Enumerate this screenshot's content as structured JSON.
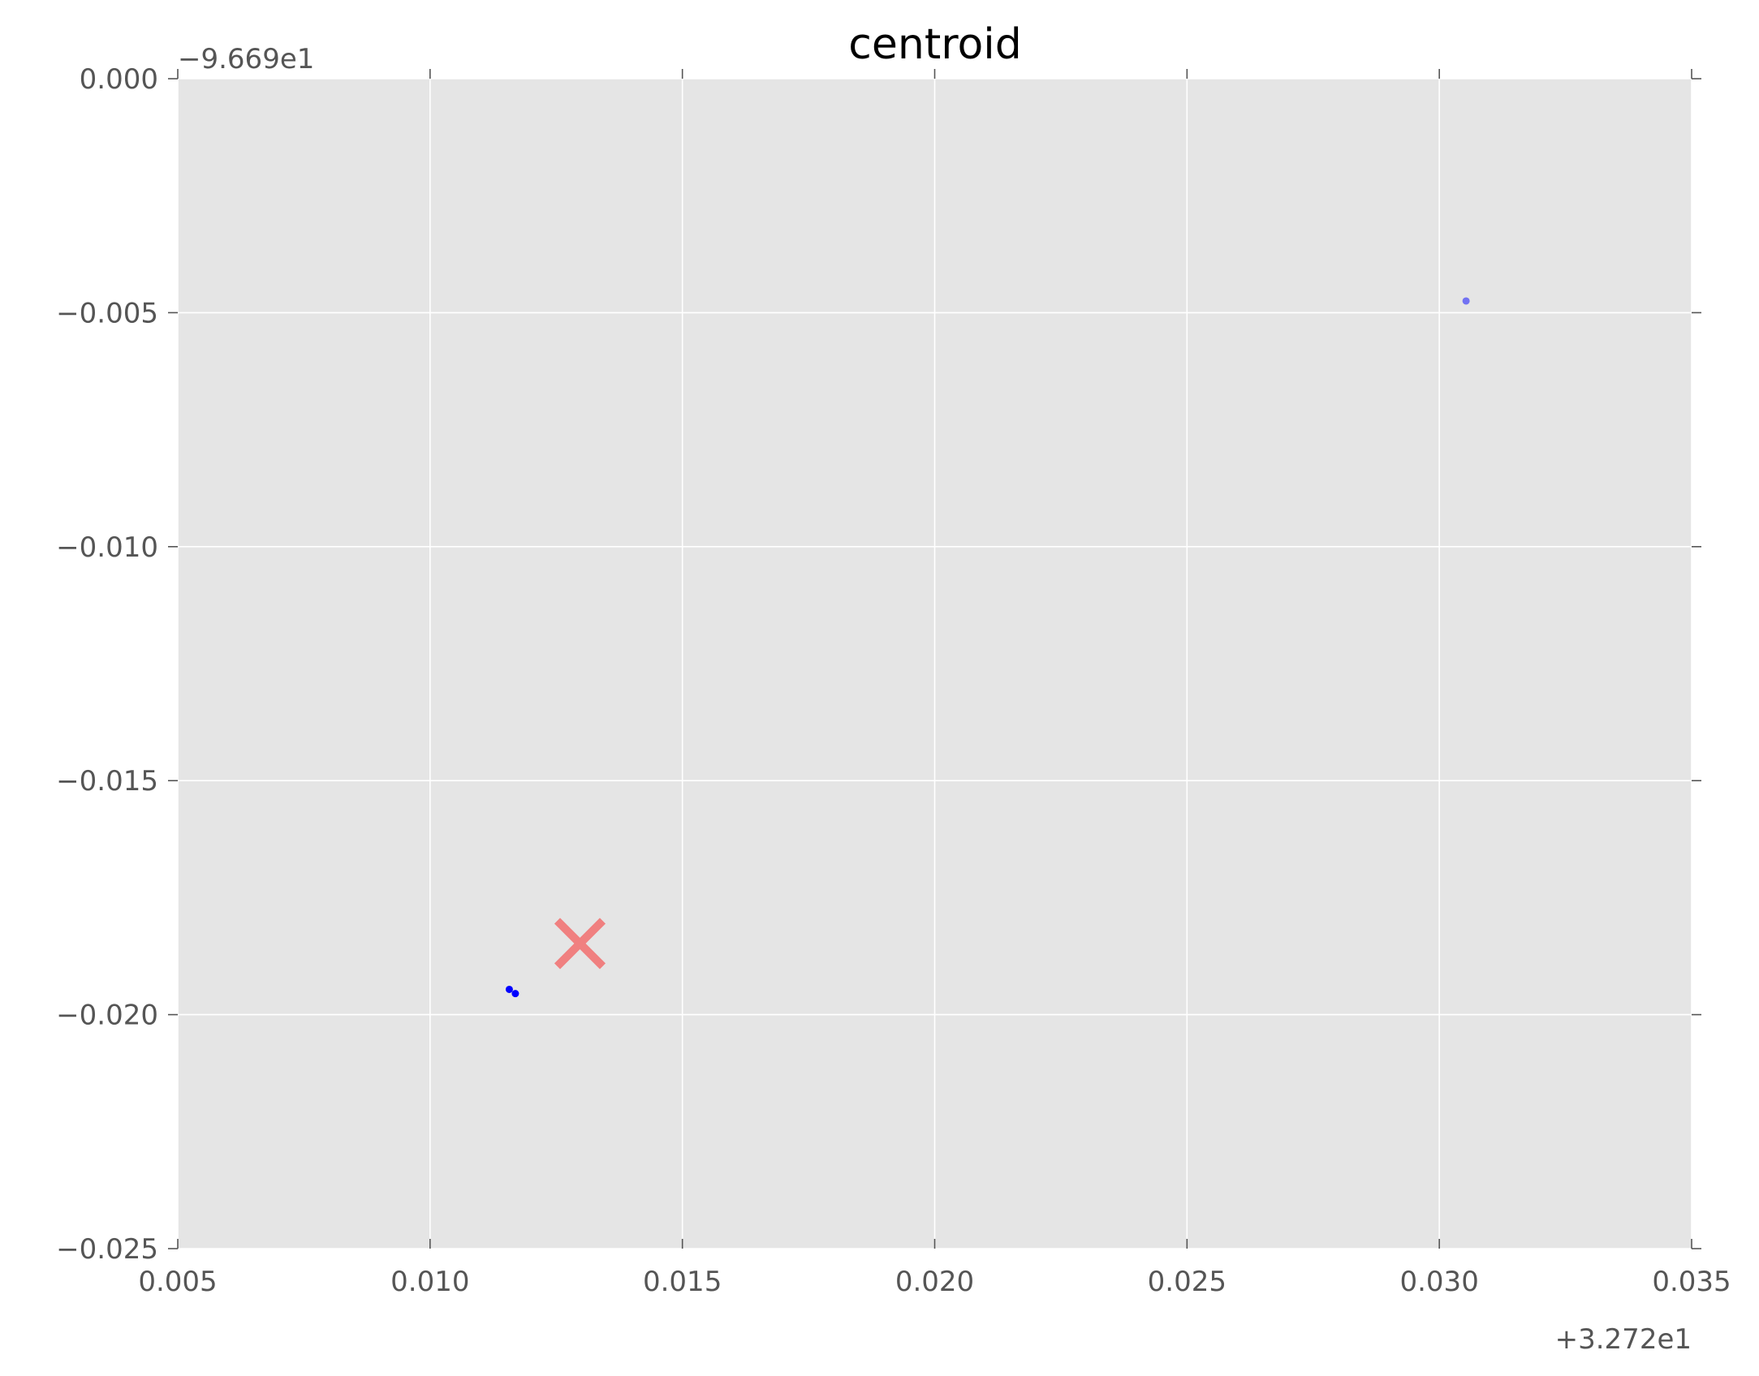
{
  "chart_data": {
    "type": "scatter",
    "title": "centroid",
    "xlabel": "",
    "ylabel": "",
    "xlim": [
      0.005,
      0.035
    ],
    "ylim": [
      -0.025,
      0.0
    ],
    "x_offset_label": "+3.272e1",
    "y_offset_label": "−9.669e1",
    "x_ticks": [
      {
        "value": 0.005,
        "label": "0.005"
      },
      {
        "value": 0.01,
        "label": "0.010"
      },
      {
        "value": 0.015,
        "label": "0.015"
      },
      {
        "value": 0.02,
        "label": "0.020"
      },
      {
        "value": 0.025,
        "label": "0.025"
      },
      {
        "value": 0.03,
        "label": "0.030"
      },
      {
        "value": 0.035,
        "label": "0.035"
      }
    ],
    "y_ticks": [
      {
        "value": 0.0,
        "label": "0.000"
      },
      {
        "value": -0.005,
        "label": "−0.005"
      },
      {
        "value": -0.01,
        "label": "−0.010"
      },
      {
        "value": -0.015,
        "label": "−0.015"
      },
      {
        "value": -0.02,
        "label": "−0.020"
      },
      {
        "value": -0.025,
        "label": "−0.025"
      }
    ],
    "grid": true,
    "series": [
      {
        "color": "#0000ff",
        "points": [
          {
            "x": 0.01157,
            "y": -0.01946,
            "opacity": 1.0
          },
          {
            "x": 0.01169,
            "y": -0.01955,
            "opacity": 1.0
          },
          {
            "x": 0.03053,
            "y": -0.00475,
            "opacity": 0.5
          }
        ]
      },
      {
        "color": "#f08080",
        "marker": "x",
        "points": [
          {
            "x": 0.01297,
            "y": -0.01848
          }
        ]
      }
    ],
    "background_color": "#e5e5e5",
    "grid_color": "#ffffff"
  }
}
